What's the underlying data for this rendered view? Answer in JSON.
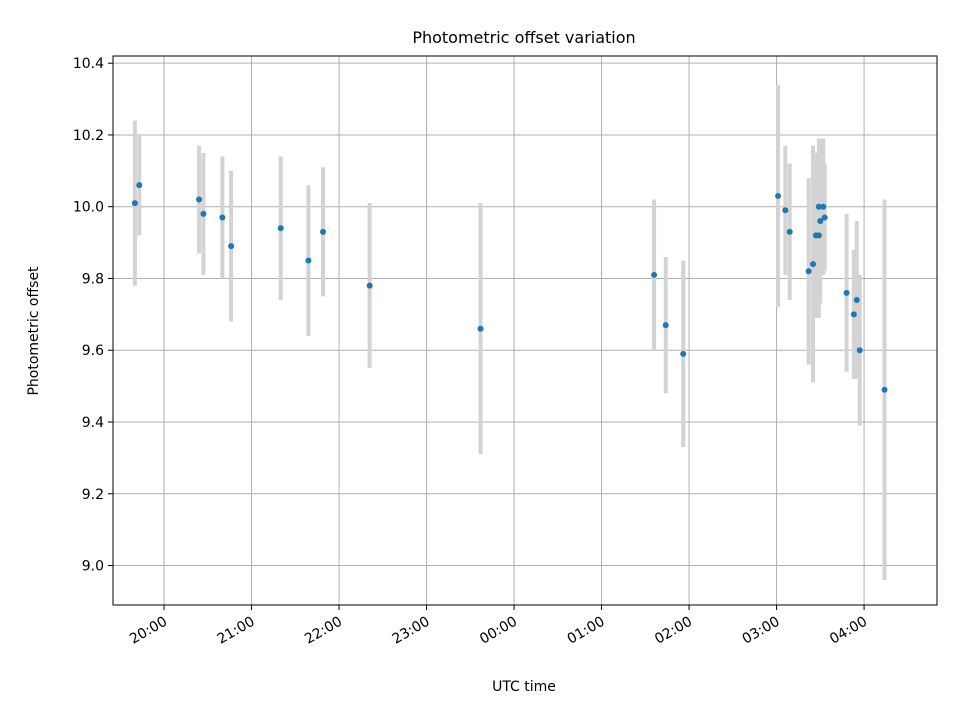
{
  "chart_data": {
    "type": "scatter",
    "title": "Photometric offset variation",
    "xlabel": "UTC time",
    "ylabel": "Photometric offset",
    "xlim": [
      "19:25",
      "04:50"
    ],
    "ylim": [
      8.89,
      10.42
    ],
    "xticks": [
      "20:00",
      "21:00",
      "22:00",
      "23:00",
      "00:00",
      "01:00",
      "02:00",
      "03:00",
      "04:00"
    ],
    "yticks": [
      9.0,
      9.2,
      9.4,
      9.6,
      9.8,
      10.0,
      10.2,
      10.4
    ],
    "grid": true,
    "colors": {
      "points": "#1f77b4",
      "errorbars": "#d3d3d3",
      "grid": "#b0b0b0"
    },
    "points": [
      {
        "time": "19:40",
        "y": 10.01,
        "err": 0.23
      },
      {
        "time": "19:43",
        "y": 10.06,
        "err": 0.14
      },
      {
        "time": "20:24",
        "y": 10.02,
        "err": 0.15
      },
      {
        "time": "20:27",
        "y": 9.98,
        "err": 0.17
      },
      {
        "time": "20:40",
        "y": 9.97,
        "err": 0.17
      },
      {
        "time": "20:46",
        "y": 9.89,
        "err": 0.21
      },
      {
        "time": "21:20",
        "y": 9.94,
        "err": 0.2
      },
      {
        "time": "21:39",
        "y": 9.85,
        "err": 0.21
      },
      {
        "time": "21:49",
        "y": 9.93,
        "err": 0.18
      },
      {
        "time": "22:21",
        "y": 9.78,
        "err": 0.23
      },
      {
        "time": "23:37",
        "y": 9.66,
        "err": 0.35
      },
      {
        "time": "01:36",
        "y": 9.81,
        "err": 0.21
      },
      {
        "time": "01:44",
        "y": 9.67,
        "err": 0.19
      },
      {
        "time": "01:56",
        "y": 9.59,
        "err": 0.26
      },
      {
        "time": "03:01",
        "y": 10.03,
        "err": 0.31
      },
      {
        "time": "03:06",
        "y": 9.99,
        "err": 0.18
      },
      {
        "time": "03:09",
        "y": 9.93,
        "err": 0.19
      },
      {
        "time": "03:22",
        "y": 9.82,
        "err": 0.26
      },
      {
        "time": "03:25",
        "y": 9.84,
        "err": 0.33
      },
      {
        "time": "03:27",
        "y": 9.92,
        "err": 0.23
      },
      {
        "time": "03:29",
        "y": 9.92,
        "err": 0.23
      },
      {
        "time": "03:29",
        "y": 10.0,
        "err": 0.19
      },
      {
        "time": "03:30",
        "y": 9.96,
        "err": 0.23
      },
      {
        "time": "03:32",
        "y": 10.0,
        "err": 0.19
      },
      {
        "time": "03:33",
        "y": 9.97,
        "err": 0.15
      },
      {
        "time": "03:48",
        "y": 9.76,
        "err": 0.22
      },
      {
        "time": "03:53",
        "y": 9.7,
        "err": 0.18
      },
      {
        "time": "03:55",
        "y": 9.74,
        "err": 0.22
      },
      {
        "time": "03:57",
        "y": 9.6,
        "err": 0.21
      },
      {
        "time": "04:14",
        "y": 9.49,
        "err": 0.53
      }
    ]
  }
}
